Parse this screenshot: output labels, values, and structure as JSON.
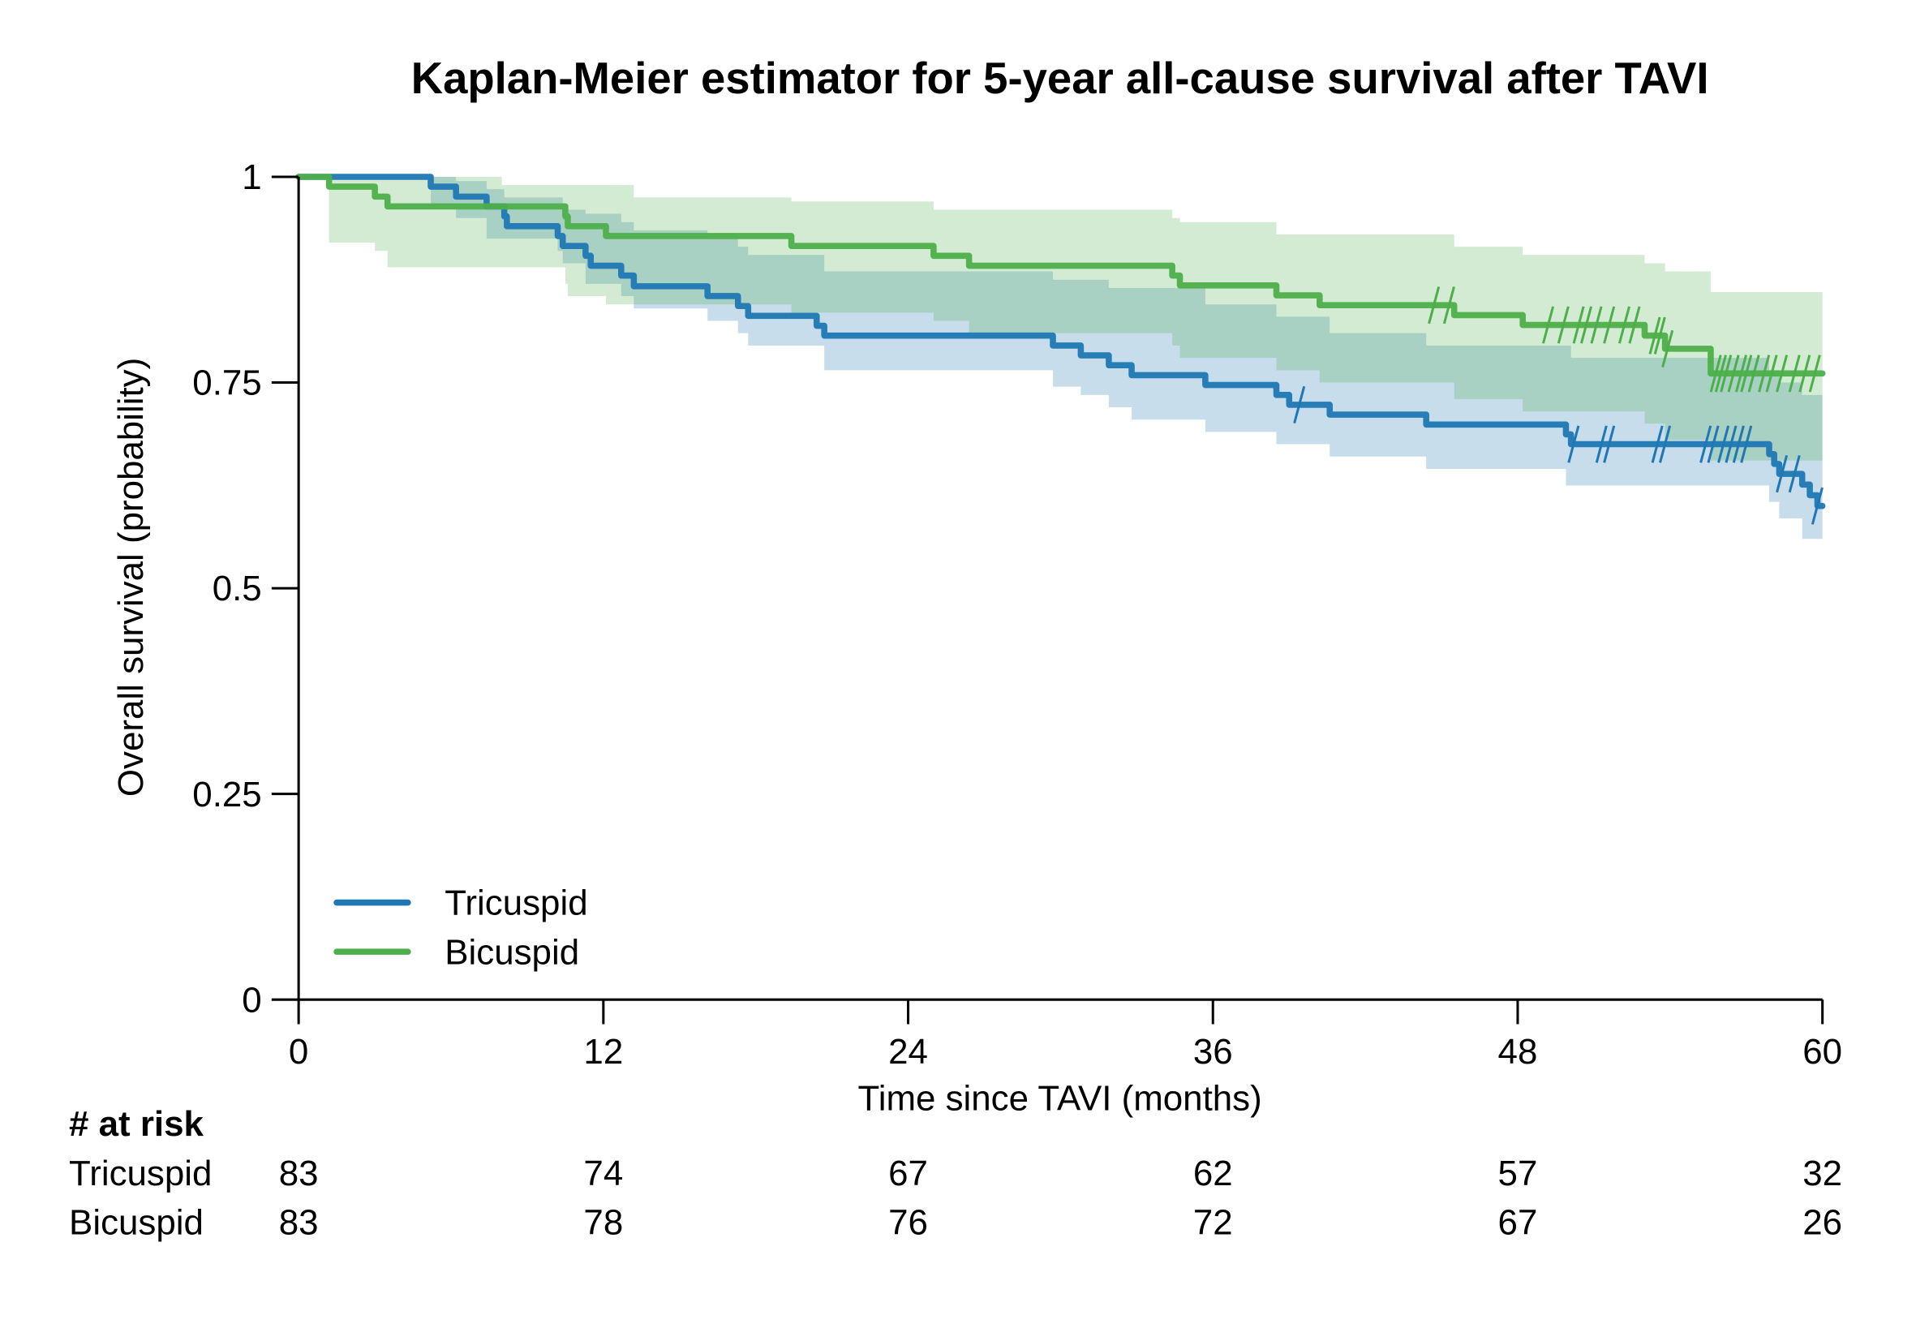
{
  "chart_data": {
    "type": "line",
    "subtype": "kaplan-meier step",
    "title": "Kaplan-Meier estimator for 5-year all-cause survival after TAVI",
    "xlabel": "Time since TAVI (months)",
    "ylabel": "Overall survival (probability)",
    "xlim": [
      0,
      60
    ],
    "ylim": [
      0,
      1
    ],
    "xticks": [
      0,
      12,
      24,
      36,
      48,
      60
    ],
    "xtick_labels": [
      "0",
      "12",
      "24",
      "36",
      "48",
      "60"
    ],
    "yticks": [
      0,
      0.25,
      0.5,
      0.75,
      1
    ],
    "ytick_labels": [
      "0",
      "0.25",
      "0.5",
      "0.75",
      "1"
    ],
    "grid": false,
    "legend_position": "bottom-left",
    "series": [
      {
        "name": "Tricuspid",
        "color": "#1f78b4",
        "band_color": "#c6dcea",
        "steps": [
          [
            0,
            1.0
          ],
          [
            5.2,
            0.988
          ],
          [
            6.2,
            0.976
          ],
          [
            7.4,
            0.964
          ],
          [
            8.1,
            0.952
          ],
          [
            8.2,
            0.94
          ],
          [
            10.2,
            0.928
          ],
          [
            10.4,
            0.916
          ],
          [
            11.3,
            0.904
          ],
          [
            11.5,
            0.892
          ],
          [
            12.7,
            0.88
          ],
          [
            13.2,
            0.867
          ],
          [
            16.1,
            0.855
          ],
          [
            17.3,
            0.843
          ],
          [
            17.7,
            0.831
          ],
          [
            20.4,
            0.819
          ],
          [
            20.7,
            0.807
          ],
          [
            29.7,
            0.795
          ],
          [
            30.8,
            0.783
          ],
          [
            31.9,
            0.771
          ],
          [
            32.8,
            0.759
          ],
          [
            35.7,
            0.747
          ],
          [
            38.5,
            0.735
          ],
          [
            39.0,
            0.723
          ],
          [
            40.6,
            0.711
          ],
          [
            44.4,
            0.699
          ],
          [
            49.9,
            0.687
          ],
          [
            50.1,
            0.675
          ],
          [
            57.9,
            0.663
          ],
          [
            58.1,
            0.651
          ],
          [
            58.3,
            0.639
          ],
          [
            59.2,
            0.626
          ],
          [
            59.5,
            0.613
          ],
          [
            59.8,
            0.6
          ],
          [
            60,
            0.6
          ]
        ],
        "ci_upper": [
          [
            0,
            1.0
          ],
          [
            5.2,
            1.0
          ],
          [
            6.2,
            0.995
          ],
          [
            7.4,
            0.985
          ],
          [
            8.1,
            0.975
          ],
          [
            10.4,
            0.96
          ],
          [
            11.3,
            0.955
          ],
          [
            12.7,
            0.945
          ],
          [
            13.2,
            0.935
          ],
          [
            16.1,
            0.925
          ],
          [
            17.3,
            0.915
          ],
          [
            17.7,
            0.905
          ],
          [
            20.7,
            0.885
          ],
          [
            26.0,
            0.885
          ],
          [
            29.7,
            0.875
          ],
          [
            31.9,
            0.865
          ],
          [
            35.7,
            0.845
          ],
          [
            38.5,
            0.83
          ],
          [
            40.6,
            0.81
          ],
          [
            44.4,
            0.795
          ],
          [
            50.1,
            0.78
          ],
          [
            57.9,
            0.765
          ],
          [
            58.3,
            0.75
          ],
          [
            59.2,
            0.735
          ],
          [
            60,
            0.73
          ]
        ],
        "ci_lower": [
          [
            0,
            1.0
          ],
          [
            5.2,
            0.965
          ],
          [
            6.2,
            0.95
          ],
          [
            7.4,
            0.925
          ],
          [
            10.2,
            0.91
          ],
          [
            10.4,
            0.895
          ],
          [
            11.3,
            0.87
          ],
          [
            12.7,
            0.855
          ],
          [
            13.2,
            0.84
          ],
          [
            16.1,
            0.825
          ],
          [
            17.3,
            0.81
          ],
          [
            17.7,
            0.795
          ],
          [
            20.7,
            0.765
          ],
          [
            29.7,
            0.745
          ],
          [
            30.8,
            0.735
          ],
          [
            31.9,
            0.72
          ],
          [
            32.8,
            0.705
          ],
          [
            35.7,
            0.69
          ],
          [
            38.5,
            0.675
          ],
          [
            40.6,
            0.66
          ],
          [
            44.4,
            0.645
          ],
          [
            49.9,
            0.625
          ],
          [
            57.9,
            0.605
          ],
          [
            58.3,
            0.585
          ],
          [
            59.2,
            0.56
          ],
          [
            60,
            0.555
          ]
        ],
        "censored_times": [
          39.4,
          50.2,
          51.3,
          51.6,
          53.5,
          53.8,
          55.4,
          55.7,
          56.1,
          56.4,
          56.7,
          57.0,
          58.4,
          58.9,
          59.8
        ]
      },
      {
        "name": "Bicuspid",
        "color": "#4daf4a",
        "band_color": "#d4ebd2",
        "steps": [
          [
            0,
            1.0
          ],
          [
            1.2,
            0.988
          ],
          [
            3.0,
            0.976
          ],
          [
            3.5,
            0.964
          ],
          [
            10.5,
            0.952
          ],
          [
            10.6,
            0.94
          ],
          [
            12.1,
            0.928
          ],
          [
            19.4,
            0.916
          ],
          [
            25.0,
            0.904
          ],
          [
            26.4,
            0.892
          ],
          [
            34.4,
            0.88
          ],
          [
            34.7,
            0.868
          ],
          [
            38.5,
            0.856
          ],
          [
            40.2,
            0.844
          ],
          [
            45.5,
            0.832
          ],
          [
            48.2,
            0.82
          ],
          [
            53.0,
            0.807
          ],
          [
            53.8,
            0.791
          ],
          [
            55.6,
            0.761
          ],
          [
            60,
            0.761
          ]
        ],
        "ci_upper": [
          [
            0,
            1.0
          ],
          [
            1.2,
            1.0
          ],
          [
            8.0,
            0.99
          ],
          [
            13.2,
            0.975
          ],
          [
            19.4,
            0.97
          ],
          [
            25.0,
            0.96
          ],
          [
            34.4,
            0.95
          ],
          [
            34.7,
            0.945
          ],
          [
            38.5,
            0.93
          ],
          [
            45.5,
            0.915
          ],
          [
            48.2,
            0.905
          ],
          [
            53.0,
            0.895
          ],
          [
            53.8,
            0.885
          ],
          [
            55.6,
            0.86
          ],
          [
            60,
            0.84
          ]
        ],
        "ci_lower": [
          [
            0,
            1.0
          ],
          [
            1.2,
            0.92
          ],
          [
            3.0,
            0.91
          ],
          [
            3.5,
            0.89
          ],
          [
            10.5,
            0.87
          ],
          [
            10.6,
            0.855
          ],
          [
            12.1,
            0.845
          ],
          [
            19.4,
            0.835
          ],
          [
            25.0,
            0.825
          ],
          [
            26.4,
            0.81
          ],
          [
            34.4,
            0.795
          ],
          [
            34.7,
            0.78
          ],
          [
            38.5,
            0.765
          ],
          [
            40.2,
            0.75
          ],
          [
            45.5,
            0.73
          ],
          [
            48.2,
            0.715
          ],
          [
            53.0,
            0.7
          ],
          [
            53.8,
            0.68
          ],
          [
            55.6,
            0.655
          ],
          [
            60,
            0.645
          ]
        ],
        "censored_times": [
          44.7,
          45.3,
          49.2,
          49.8,
          50.4,
          50.7,
          51.1,
          51.6,
          52.2,
          52.6,
          53.4,
          53.6,
          53.9,
          55.8,
          56.0,
          56.2,
          56.5,
          56.8,
          57.0,
          57.3,
          57.7,
          58.0,
          58.4,
          58.9,
          59.3,
          59.7
        ]
      }
    ],
    "at_risk": {
      "header": "# at risk",
      "times": [
        0,
        12,
        24,
        36,
        48,
        60
      ],
      "rows": [
        {
          "label": "Tricuspid",
          "values": [
            "83",
            "74",
            "67",
            "62",
            "57",
            "32"
          ]
        },
        {
          "label": "Bicuspid",
          "values": [
            "83",
            "78",
            "76",
            "72",
            "67",
            "26"
          ]
        }
      ]
    }
  }
}
